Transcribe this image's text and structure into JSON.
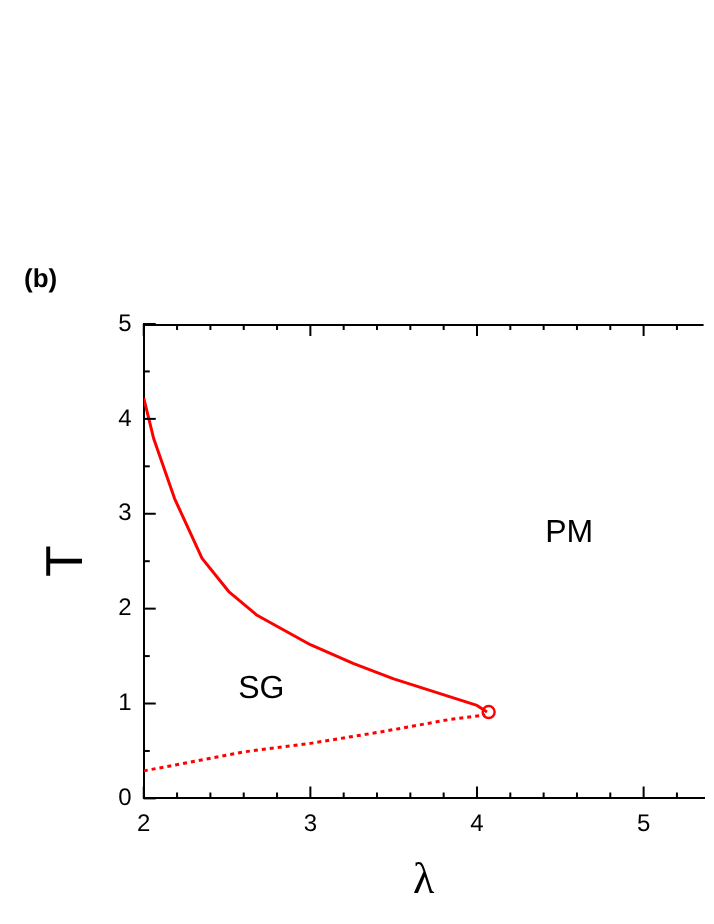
{
  "chart_data": {
    "type": "line",
    "xlabel": "λ",
    "ylabel": "T",
    "xlim": [
      2,
      5.36
    ],
    "ylim": [
      0,
      5
    ],
    "xticks": [
      2,
      {
        "value": 2.2,
        "label": null
      },
      {
        "value": 2.4,
        "label": null
      },
      {
        "value": 2.6,
        "label": null
      },
      {
        "value": 2.8,
        "label": null
      },
      3,
      {
        "value": 3.2,
        "label": null
      },
      {
        "value": 3.4,
        "label": null
      },
      {
        "value": 3.6,
        "label": null
      },
      {
        "value": 3.8,
        "label": null
      },
      4,
      {
        "value": 4.2,
        "label": null
      },
      {
        "value": 4.4,
        "label": null
      },
      {
        "value": 4.6,
        "label": null
      },
      {
        "value": 4.8,
        "label": null
      },
      5,
      {
        "value": 5.2,
        "label": null
      }
    ],
    "yticks": [
      0,
      {
        "value": 0.5,
        "label": null
      },
      1,
      {
        "value": 1.5,
        "label": null
      },
      2,
      {
        "value": 2.5,
        "label": null
      },
      3,
      {
        "value": 3.5,
        "label": null
      },
      4,
      {
        "value": 4.5,
        "label": null
      },
      5
    ],
    "grid": false,
    "legend": false,
    "series": [
      {
        "line_style": "solid",
        "marker": "none",
        "color": "#ff0000",
        "x": [
          2,
          2.06,
          2.185,
          2.35,
          2.51,
          2.68,
          3.0,
          3.26,
          3.5,
          3.75,
          4.0,
          4.06
        ],
        "values": [
          4.22,
          3.79,
          3.16,
          2.53,
          2.18,
          1.93,
          1.62,
          1.42,
          1.26,
          1.12,
          0.98,
          0.91
        ]
      },
      {
        "type": "line",
        "line_style": "dotted",
        "marker": "none",
        "color": "#ff0000",
        "x": [
          2,
          2.6,
          3.0,
          3.42,
          3.83,
          4.05
        ],
        "values": [
          0.29,
          0.49,
          0.58,
          0.7,
          0.83,
          0.88
        ]
      },
      {
        "type": "scatter",
        "marker": "circle",
        "color": "#ff0000",
        "x": [
          4.07
        ],
        "values": [
          0.91
        ]
      }
    ],
    "annotations": [
      "(b)",
      "SG",
      "PM"
    ]
  }
}
